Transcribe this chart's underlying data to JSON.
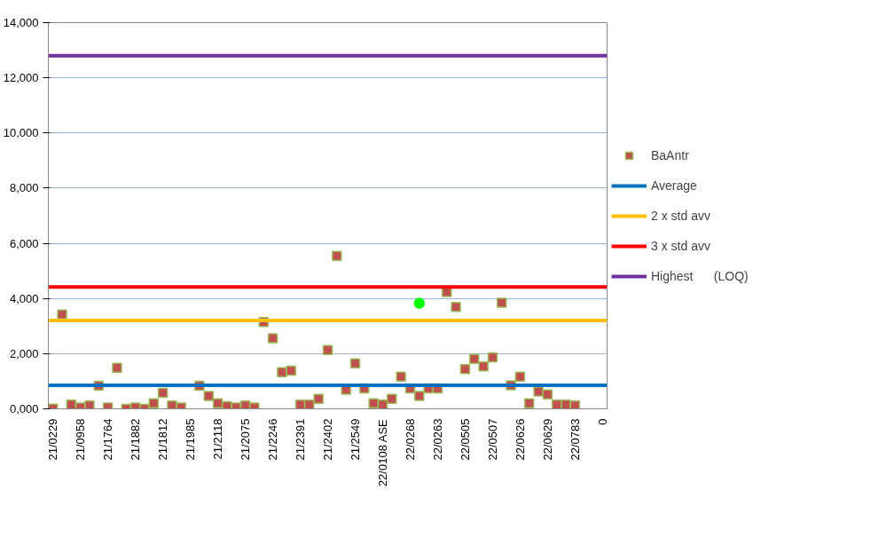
{
  "chart_data": {
    "type": "scatter",
    "categories": [
      "21/0229",
      null,
      null,
      "21/0958",
      null,
      null,
      "21/1764",
      null,
      null,
      "21/1882",
      null,
      null,
      "21/1812",
      null,
      null,
      "21/1985",
      null,
      null,
      "21/2118",
      null,
      null,
      "21/2075",
      null,
      null,
      "21/2246",
      null,
      null,
      "21/2391",
      null,
      null,
      "21/2402",
      null,
      null,
      "21/2549",
      null,
      null,
      "22/0108 ASE",
      null,
      null,
      "22/0268",
      null,
      null,
      "22/0263",
      null,
      null,
      "22/0505",
      null,
      null,
      "22/0507",
      null,
      null,
      "22/0626",
      null,
      null,
      "22/0629",
      null,
      null,
      "22/0783",
      null,
      null,
      "0"
    ],
    "series": [
      {
        "name": "BaAntr",
        "color": "#c0504d",
        "marker": "square",
        "values": [
          10,
          3420,
          150,
          50,
          120,
          840,
          50,
          1490,
          0,
          50,
          0,
          200,
          580,
          120,
          50,
          null,
          840,
          470,
          200,
          100,
          50,
          120,
          50,
          3150,
          2560,
          1330,
          1380,
          150,
          150,
          360,
          2130,
          5540,
          690,
          1650,
          740,
          200,
          150,
          360,
          1170,
          740,
          470,
          740,
          740,
          4230,
          3690,
          1440,
          1810,
          1540,
          1870,
          3850,
          850,
          1170,
          200,
          630,
          520,
          150,
          150,
          120,
          null,
          null,
          null
        ]
      },
      {
        "color": "#00ff00",
        "marker": "circle",
        "values": [
          null,
          null,
          null,
          null,
          null,
          null,
          null,
          null,
          null,
          null,
          null,
          null,
          null,
          null,
          null,
          null,
          null,
          null,
          null,
          null,
          null,
          null,
          null,
          null,
          null,
          null,
          null,
          null,
          null,
          null,
          null,
          null,
          null,
          null,
          null,
          null,
          null,
          null,
          null,
          null,
          3830,
          null,
          null,
          null,
          null,
          null,
          null,
          null,
          null,
          null,
          null,
          null,
          null,
          null,
          null,
          null,
          null,
          null,
          null,
          null,
          null
        ]
      }
    ],
    "ref_lines": [
      {
        "axis": "y",
        "value": 850,
        "label": "Average",
        "color": "#0070c0"
      },
      {
        "axis": "y",
        "value": 3200,
        "label": "2 x std avv",
        "color": "#ffc000"
      },
      {
        "axis": "y",
        "value": 4420,
        "label": "3 x std avv",
        "color": "#ff0000"
      },
      {
        "axis": "y",
        "value": 12800,
        "label": "Highest      (LOQ)",
        "color": "#7030a0"
      }
    ],
    "ylim": [
      0,
      14000
    ],
    "yticks": [
      {
        "value": 0,
        "label": "0,000"
      },
      {
        "value": 2000,
        "label": "2,000"
      },
      {
        "value": 4000,
        "label": "4,000"
      },
      {
        "value": 6000,
        "label": "6,000"
      },
      {
        "value": 8000,
        "label": "8,000"
      },
      {
        "value": 10000,
        "label": "10,000"
      },
      {
        "value": 12000,
        "label": "12,000"
      },
      {
        "value": 14000,
        "label": "14,000"
      }
    ],
    "grid": "y",
    "legend": "right"
  }
}
